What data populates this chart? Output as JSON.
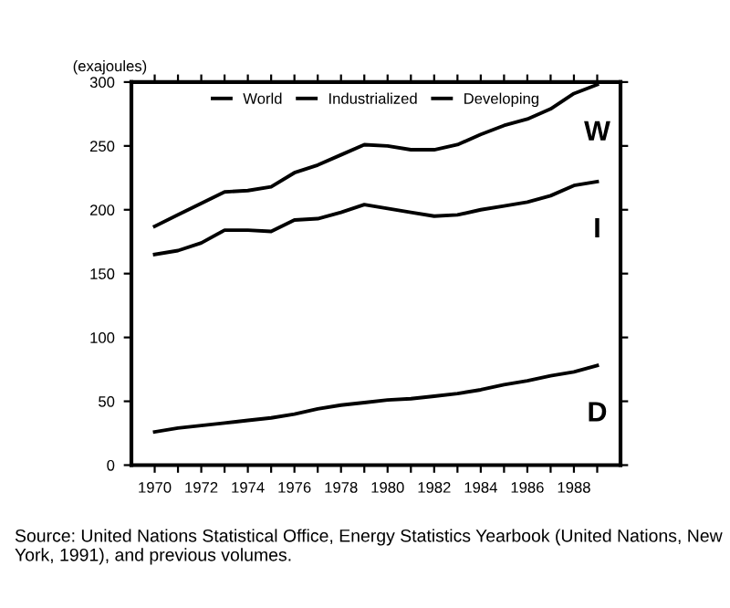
{
  "chart_data": {
    "type": "line",
    "ylabel": "(exajoules)",
    "x": [
      1970,
      1971,
      1972,
      1973,
      1974,
      1975,
      1976,
      1977,
      1978,
      1979,
      1980,
      1981,
      1982,
      1983,
      1984,
      1985,
      1986,
      1987,
      1988,
      1989
    ],
    "series": [
      {
        "name": "World",
        "color": "#000000",
        "values": [
          187,
          196,
          205,
          214,
          215,
          218,
          229,
          235,
          243,
          251,
          250,
          247,
          247,
          251,
          259,
          266,
          271,
          279,
          291,
          298
        ]
      },
      {
        "name": "Industrialized",
        "color": "#000000",
        "values": [
          165,
          168,
          174,
          184,
          184,
          183,
          192,
          193,
          198,
          204,
          201,
          198,
          195,
          196,
          200,
          203,
          206,
          211,
          219,
          222
        ]
      },
      {
        "name": "Developing",
        "color": "#000000",
        "values": [
          26,
          29,
          31,
          33,
          35,
          37,
          40,
          44,
          47,
          49,
          51,
          52,
          54,
          56,
          59,
          63,
          66,
          70,
          73,
          78
        ]
      }
    ],
    "xlim": [
      1969,
      1990
    ],
    "ylim": [
      0,
      300
    ],
    "xticks": [
      1970,
      {
        "value": 1971,
        "label": null
      },
      1972,
      {
        "value": 1973,
        "label": null
      },
      1974,
      {
        "value": 1975,
        "label": null
      },
      1976,
      {
        "value": 1977,
        "label": null
      },
      1978,
      {
        "value": 1979,
        "label": null
      },
      1980,
      {
        "value": 1981,
        "label": null
      },
      1982,
      {
        "value": 1983,
        "label": null
      },
      1984,
      {
        "value": 1985,
        "label": null
      },
      1986,
      {
        "value": 1987,
        "label": null
      },
      1988,
      {
        "value": 1989,
        "label": null
      }
    ],
    "yticks": [
      0,
      50,
      100,
      150,
      200,
      250,
      300
    ],
    "legend": "top",
    "grid": false,
    "annotations": [
      "W",
      "I",
      "D",
      "Source: United Nations Statistical Office, Energy Statistics Yearbook (United Nations, New York, 1991), and previous volumes."
    ]
  }
}
